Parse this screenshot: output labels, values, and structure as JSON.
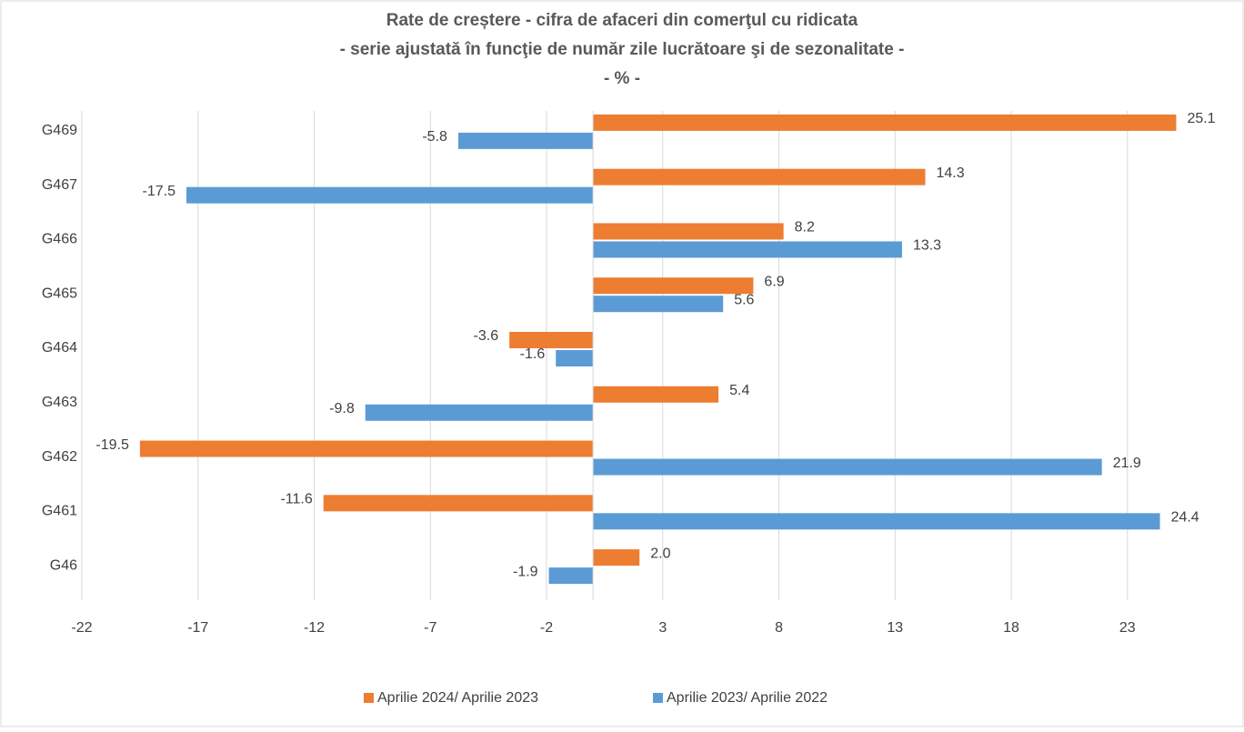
{
  "chart_data": {
    "type": "hbar",
    "title": "Rate de creștere - cifra de afaceri din comerţul cu ridicata",
    "subtitle": "- serie ajustată în funcţie de număr zile lucrătoare şi de sezonalitate -",
    "unit_label": "- % -",
    "categories": [
      "G469",
      "G467",
      "G466",
      "G465",
      "G464",
      "G463",
      "G462",
      "G461",
      "G46"
    ],
    "series": [
      {
        "name": "Aprilie 2024/ Aprilie 2023",
        "color": "#ed7d31",
        "values": [
          25.1,
          14.3,
          8.2,
          6.9,
          -3.6,
          5.4,
          -19.5,
          -11.6,
          2.0
        ],
        "value_labels": [
          "25.1",
          "14.3",
          "8.2",
          "6.9",
          "-3.6",
          "5.4",
          "-19.5",
          "-11.6",
          "2.0"
        ]
      },
      {
        "name": "Aprilie 2023/ Aprilie 2022",
        "color": "#5b9bd5",
        "values": [
          -5.8,
          -17.5,
          13.3,
          5.6,
          -1.6,
          -9.8,
          21.9,
          24.4,
          -1.9
        ],
        "value_labels": [
          "-5.8",
          "-17.5",
          "13.3",
          "5.6",
          "-1.6",
          "-9.8",
          "21.9",
          "24.4",
          "-1.9"
        ]
      }
    ],
    "xlim": [
      -22,
      27
    ],
    "xticks": [
      -22,
      -17,
      -12,
      -7,
      -2,
      3,
      8,
      13,
      18,
      23
    ],
    "grid": true,
    "legend": "bottom"
  }
}
